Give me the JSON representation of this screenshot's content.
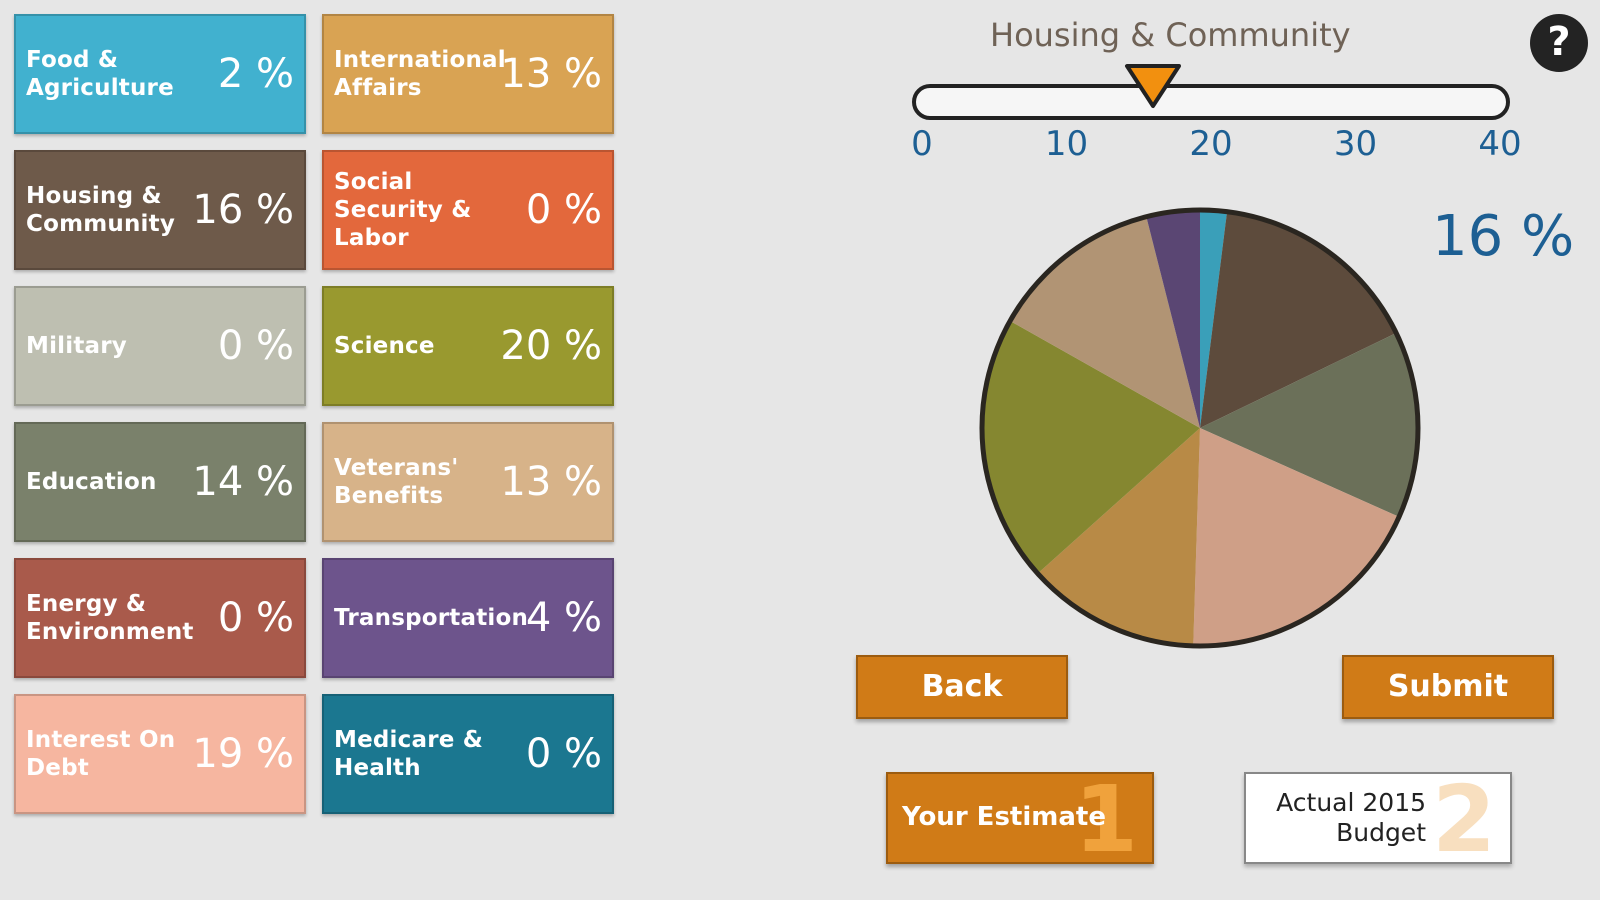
{
  "tiles": [
    {
      "label": "Food & Agriculture",
      "value": "2 %",
      "color": "#41b1cf"
    },
    {
      "label": "International Affairs",
      "value": "13 %",
      "color": "#d9a353"
    },
    {
      "label": "Housing & Community",
      "value": "16 %",
      "color": "#6e5a4a"
    },
    {
      "label": "Social Security & Labor",
      "value": "0 %",
      "color": "#e3683c"
    },
    {
      "label": "Military",
      "value": "0 %",
      "color": "#bebfb1"
    },
    {
      "label": "Science",
      "value": "20 %",
      "color": "#99992f"
    },
    {
      "label": "Education",
      "value": "14 %",
      "color": "#7a816b"
    },
    {
      "label": "Veterans' Benefits",
      "value": "13 %",
      "color": "#d7b389"
    },
    {
      "label": "Energy & Environment",
      "value": "0 %",
      "color": "#a95a4b"
    },
    {
      "label": "Transportation",
      "value": "4 %",
      "color": "#6d548c"
    },
    {
      "label": "Interest On Debt",
      "value": "19 %",
      "color": "#f6b6a0"
    },
    {
      "label": "Medicare & Health",
      "value": "0 %",
      "color": "#1b7790"
    }
  ],
  "slider": {
    "title": "Housing & Community",
    "min": 0,
    "max": 40,
    "value": 16,
    "ticks": [
      "0",
      "10",
      "20",
      "30",
      "40"
    ]
  },
  "selected_percent": "16 %",
  "help_label": "?",
  "buttons": {
    "back": "Back",
    "submit": "Submit",
    "estimate": "Your Estimate",
    "estimate_number": "1",
    "actual": "Actual 2015 Budget",
    "actual_number": "2"
  },
  "pie": {
    "slices": [
      {
        "category": "Food & Agriculture",
        "value": 2,
        "color": "#3a9fb9"
      },
      {
        "category": "Housing & Community",
        "value": 16,
        "color": "#5d4b3c"
      },
      {
        "category": "Education",
        "value": 14,
        "color": "#6b7059"
      },
      {
        "category": "Interest On Debt",
        "value": 19,
        "color": "#cf9f87"
      },
      {
        "category": "International Affairs",
        "value": 13,
        "color": "#b88a46"
      },
      {
        "category": "Science",
        "value": 20,
        "color": "#858730"
      },
      {
        "category": "Veterans' Benefits",
        "value": 13,
        "color": "#b19474"
      },
      {
        "category": "Transportation",
        "value": 4,
        "color": "#5a4673"
      }
    ]
  }
}
